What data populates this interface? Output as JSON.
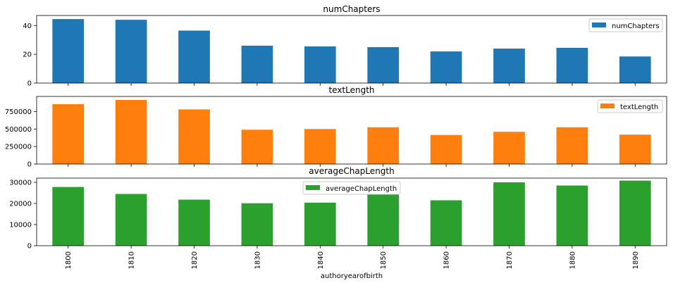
{
  "chart_data": [
    {
      "type": "bar",
      "title": "numChapters",
      "categories": [
        "1800",
        "1810",
        "1820",
        "1830",
        "1840",
        "1850",
        "1860",
        "1870",
        "1880",
        "1890"
      ],
      "series": [
        {
          "name": "numChapters",
          "values": [
            44.5,
            44,
            36.5,
            26,
            25.5,
            25,
            22,
            24,
            24.5,
            18.5
          ]
        }
      ],
      "ylim": [
        0,
        47
      ],
      "yticks": [
        0,
        20,
        40
      ],
      "color": "#1f77b4",
      "legend_position": "top-right",
      "xlabel": "",
      "ylabel": ""
    },
    {
      "type": "bar",
      "title": "textLength",
      "categories": [
        "1800",
        "1810",
        "1820",
        "1830",
        "1840",
        "1850",
        "1860",
        "1870",
        "1880",
        "1890"
      ],
      "series": [
        {
          "name": "textLength",
          "values": [
            855000,
            915000,
            780000,
            490000,
            500000,
            525000,
            415000,
            460000,
            525000,
            420000
          ]
        }
      ],
      "ylim": [
        0,
        965000
      ],
      "yticks": [
        0,
        250000,
        500000,
        750000
      ],
      "color": "#ff7f0e",
      "legend_position": "top-right",
      "xlabel": "",
      "ylabel": ""
    },
    {
      "type": "bar",
      "title": "averageChapLength",
      "categories": [
        "1800",
        "1810",
        "1820",
        "1830",
        "1840",
        "1850",
        "1860",
        "1870",
        "1880",
        "1890"
      ],
      "series": [
        {
          "name": "averageChapLength",
          "values": [
            27800,
            24500,
            21800,
            20100,
            20400,
            24200,
            21500,
            30000,
            28500,
            30800
          ]
        }
      ],
      "ylim": [
        0,
        32000
      ],
      "yticks": [
        0,
        10000,
        20000,
        30000
      ],
      "color": "#2ca02c",
      "legend_position": "top-center",
      "xlabel": "authoryearofbirth",
      "ylabel": ""
    }
  ]
}
